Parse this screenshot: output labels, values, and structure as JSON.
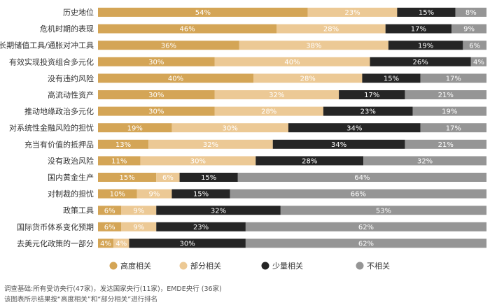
{
  "chart_data": {
    "type": "bar",
    "orientation": "horizontal-stacked-100",
    "categories": [
      "历史地位",
      "危机时期的表现",
      "长期储值工具/通胀对冲工具",
      "有效实现投资组合多元化",
      "没有违约风险",
      "高流动性资产",
      "推动地缘政治多元化",
      "对系统性金融风险的担忧",
      "充当有价值的抵押品",
      "没有政治风险",
      "国内黄金生产",
      "对制裁的担忧",
      "政策工具",
      "国际货币体系变化预期",
      "去美元化政策的一部分"
    ],
    "series": [
      {
        "name": "高度相关",
        "color": "#d4a556",
        "text_color": "#ffffff",
        "values": [
          54,
          46,
          36,
          30,
          40,
          30,
          30,
          19,
          13,
          11,
          15,
          10,
          6,
          6,
          4
        ]
      },
      {
        "name": "部分相关",
        "color": "#ecc995",
        "text_color": "#ffffff",
        "values": [
          23,
          28,
          38,
          40,
          28,
          32,
          28,
          30,
          32,
          30,
          6,
          9,
          9,
          9,
          4
        ]
      },
      {
        "name": "少量相关",
        "color": "#252525",
        "text_color": "#ffffff",
        "values": [
          15,
          17,
          19,
          26,
          15,
          17,
          23,
          34,
          34,
          28,
          15,
          15,
          32,
          23,
          30
        ]
      },
      {
        "name": "不相关",
        "color": "#959595",
        "text_color": "#ffffff",
        "values": [
          8,
          9,
          6,
          4,
          17,
          21,
          19,
          17,
          21,
          32,
          64,
          66,
          53,
          62,
          62
        ]
      }
    ],
    "value_suffix": "%",
    "xlim": [
      0,
      100
    ],
    "legend_position": "bottom"
  },
  "footnotes": {
    "line1": "调查基础:所有受访央行(47家)，发达国家央行(11家)，EMDE央行 (36家)",
    "line2": "该图表所示结果按“高度相关”和“部分相关”进行排名"
  }
}
